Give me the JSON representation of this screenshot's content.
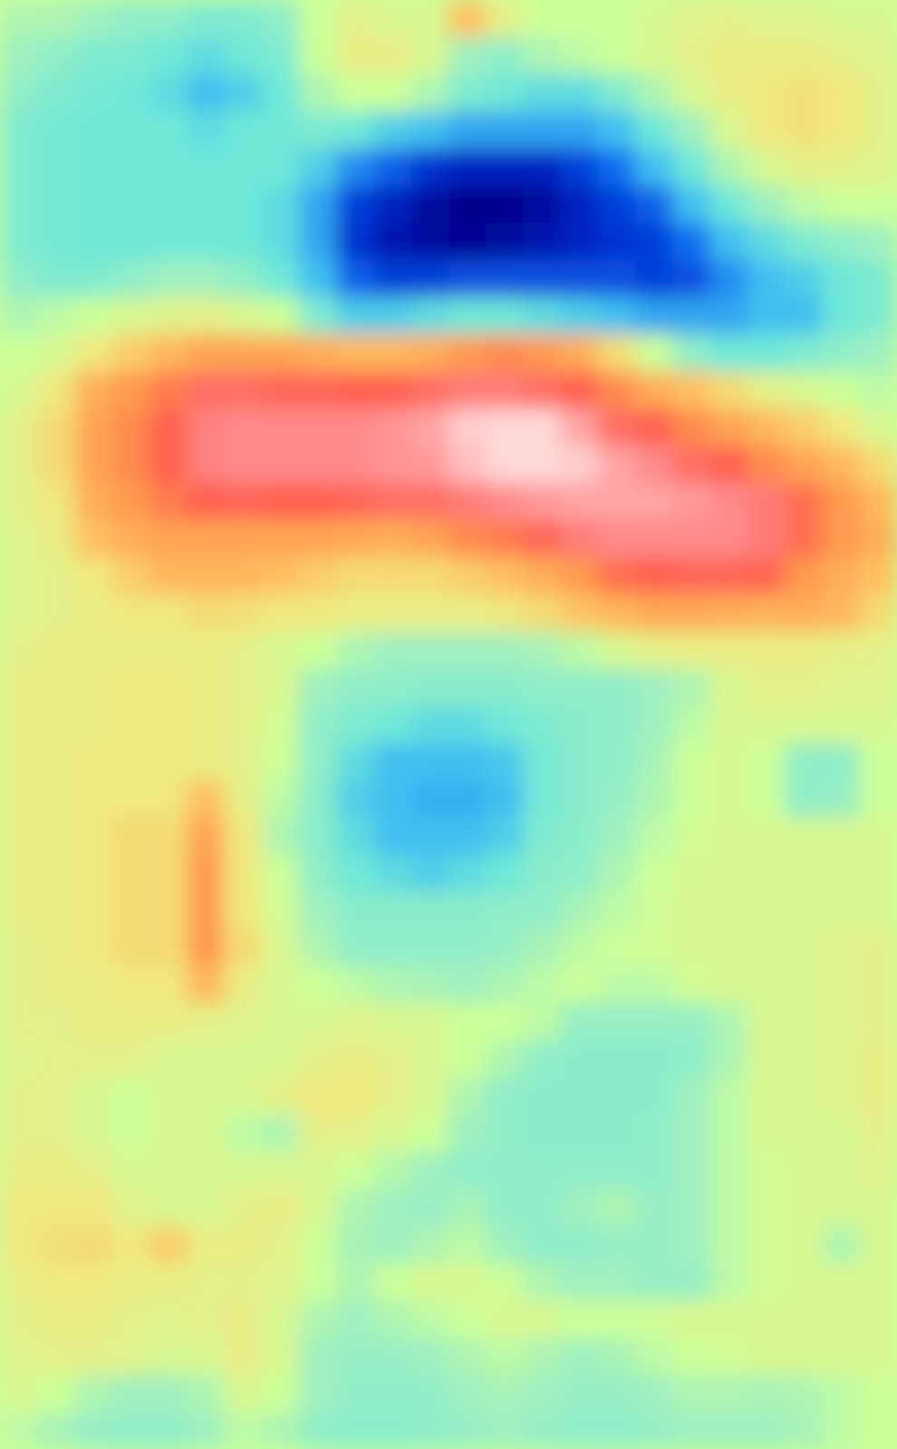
{
  "chart_data": {
    "type": "heatmap",
    "tick_labels": false,
    "zlim": [
      -1,
      1
    ],
    "cells": [
      [
        -0.1,
        -0.1,
        -0.15,
        -0.2,
        -0.2,
        -0.25,
        -0.25,
        -0.2,
        0.0,
        0.1,
        0.05,
        0.05,
        0.3,
        0.1,
        0,
        0,
        0,
        0.05,
        0.08,
        0.1,
        0.08,
        0.08,
        0.05,
        0.05
      ],
      [
        -0.15,
        -0.2,
        -0.25,
        -0.25,
        -0.3,
        -0.35,
        -0.3,
        -0.25,
        0.0,
        0.12,
        0.12,
        0.05,
        -0.15,
        -0.2,
        -0.1,
        -0.05,
        0,
        0.05,
        0.1,
        0.12,
        0.12,
        0.12,
        0.1,
        0.08
      ],
      [
        -0.2,
        -0.25,
        -0.28,
        -0.3,
        -0.35,
        -0.45,
        -0.4,
        -0.3,
        -0.1,
        0.0,
        0.0,
        -0.1,
        -0.25,
        -0.3,
        -0.35,
        -0.35,
        -0.25,
        -0.1,
        0.05,
        0.12,
        0.15,
        0.18,
        0.15,
        0.1
      ],
      [
        -0.25,
        -0.28,
        -0.3,
        -0.3,
        -0.3,
        -0.35,
        -0.3,
        -0.3,
        -0.25,
        -0.3,
        -0.4,
        -0.45,
        -0.5,
        -0.5,
        -0.5,
        -0.5,
        -0.45,
        -0.3,
        -0.15,
        0.05,
        0.15,
        0.18,
        0.15,
        0.1
      ],
      [
        -0.25,
        -0.28,
        -0.3,
        -0.3,
        -0.3,
        -0.3,
        -0.3,
        -0.3,
        -0.4,
        -0.55,
        -0.65,
        -0.8,
        -0.85,
        -0.85,
        -0.85,
        -0.75,
        -0.6,
        -0.45,
        -0.3,
        -0.1,
        0.05,
        0.1,
        0.1,
        0.08
      ],
      [
        -0.25,
        -0.28,
        -0.3,
        -0.3,
        -0.3,
        -0.3,
        -0.3,
        -0.35,
        -0.5,
        -0.75,
        -0.85,
        -0.95,
        -1.0,
        -1.0,
        -0.95,
        -0.85,
        -0.75,
        -0.65,
        -0.45,
        -0.3,
        -0.15,
        -0.05,
        0.0,
        0.0
      ],
      [
        -0.25,
        -0.28,
        -0.3,
        -0.3,
        -0.3,
        -0.3,
        -0.3,
        -0.35,
        -0.5,
        -0.8,
        -0.9,
        -0.95,
        -0.98,
        -0.95,
        -0.9,
        -0.85,
        -0.8,
        -0.75,
        -0.6,
        -0.45,
        -0.35,
        -0.25,
        -0.2,
        -0.15
      ],
      [
        -0.2,
        -0.25,
        -0.25,
        -0.2,
        -0.15,
        -0.15,
        -0.2,
        -0.3,
        -0.45,
        -0.65,
        -0.75,
        -0.75,
        -0.7,
        -0.7,
        -0.7,
        -0.7,
        -0.7,
        -0.75,
        -0.7,
        -0.55,
        -0.45,
        -0.4,
        -0.3,
        -0.25
      ],
      [
        -0.1,
        -0.05,
        0.0,
        0.05,
        0.08,
        0.1,
        0.05,
        0.0,
        -0.25,
        -0.4,
        -0.4,
        -0.35,
        -0.3,
        -0.3,
        -0.35,
        -0.4,
        -0.45,
        -0.5,
        -0.5,
        -0.5,
        -0.45,
        -0.45,
        -0.3,
        -0.25
      ],
      [
        0.0,
        0.05,
        0.15,
        0.25,
        0.35,
        0.45,
        0.45,
        0.45,
        0.4,
        0.35,
        0.35,
        0.4,
        0.5,
        0.55,
        0.5,
        0.4,
        0.2,
        0.0,
        -0.2,
        -0.3,
        -0.3,
        -0.25,
        -0.2,
        -0.15
      ],
      [
        0.05,
        0.15,
        0.4,
        0.5,
        0.6,
        0.75,
        0.75,
        0.72,
        0.72,
        0.7,
        0.7,
        0.75,
        0.8,
        0.8,
        0.75,
        0.7,
        0.55,
        0.4,
        0.3,
        0.2,
        0.1,
        0.05,
        0.0,
        -0.05
      ],
      [
        0.1,
        0.2,
        0.45,
        0.55,
        0.7,
        0.82,
        0.85,
        0.85,
        0.85,
        0.85,
        0.87,
        0.9,
        0.98,
        1.0,
        1.0,
        0.9,
        0.75,
        0.7,
        0.55,
        0.45,
        0.35,
        0.25,
        0.15,
        0.05
      ],
      [
        0.1,
        0.2,
        0.45,
        0.55,
        0.7,
        0.82,
        0.85,
        0.85,
        0.85,
        0.85,
        0.87,
        0.88,
        0.95,
        1.0,
        1.0,
        0.98,
        0.9,
        0.85,
        0.75,
        0.7,
        0.55,
        0.45,
        0.35,
        0.2
      ],
      [
        0.1,
        0.15,
        0.4,
        0.5,
        0.6,
        0.7,
        0.72,
        0.7,
        0.7,
        0.72,
        0.75,
        0.75,
        0.8,
        0.85,
        0.88,
        0.9,
        0.9,
        0.9,
        0.88,
        0.85,
        0.8,
        0.65,
        0.5,
        0.35
      ],
      [
        0.08,
        0.12,
        0.3,
        0.4,
        0.45,
        0.45,
        0.45,
        0.45,
        0.45,
        0.42,
        0.4,
        0.45,
        0.55,
        0.6,
        0.72,
        0.8,
        0.85,
        0.85,
        0.85,
        0.85,
        0.8,
        0.65,
        0.5,
        0.4
      ],
      [
        0.08,
        0.1,
        0.15,
        0.25,
        0.35,
        0.35,
        0.35,
        0.3,
        0.25,
        0.2,
        0.2,
        0.2,
        0.25,
        0.3,
        0.4,
        0.5,
        0.65,
        0.7,
        0.72,
        0.72,
        0.68,
        0.5,
        0.4,
        0.3
      ],
      [
        0.08,
        0.1,
        0.12,
        0.15,
        0.15,
        0.2,
        0.18,
        0.15,
        0.15,
        0.12,
        0.12,
        0.12,
        0.12,
        0.15,
        0.2,
        0.28,
        0.35,
        0.42,
        0.42,
        0.4,
        0.38,
        0.4,
        0.35,
        0.2
      ],
      [
        0.1,
        0.12,
        0.12,
        0.12,
        0.12,
        0.12,
        0.1,
        0.05,
        0.0,
        -0.1,
        -0.15,
        -0.15,
        -0.15,
        -0.15,
        -0.12,
        -0.05,
        0.05,
        0.1,
        0.12,
        0.12,
        0.12,
        0.12,
        0.1,
        0.1
      ],
      [
        0.12,
        0.12,
        0.12,
        0.15,
        0.15,
        0.12,
        0.1,
        0.05,
        -0.15,
        -0.2,
        -0.2,
        -0.22,
        -0.22,
        -0.22,
        -0.2,
        -0.2,
        -0.2,
        -0.15,
        -0.1,
        0.05,
        0.1,
        0.1,
        0.08,
        0.08
      ],
      [
        0.12,
        0.12,
        0.12,
        0.15,
        0.15,
        0.12,
        0.1,
        0.02,
        -0.2,
        -0.25,
        -0.3,
        -0.35,
        -0.35,
        -0.3,
        -0.25,
        -0.22,
        -0.2,
        -0.15,
        -0.05,
        0.05,
        0.05,
        0.05,
        0.05,
        0.05
      ],
      [
        0.12,
        0.12,
        0.15,
        0.15,
        0.15,
        0.12,
        0.1,
        0.0,
        -0.2,
        -0.35,
        -0.45,
        -0.45,
        -0.45,
        -0.42,
        -0.28,
        -0.22,
        -0.2,
        -0.12,
        0.0,
        0.05,
        0.0,
        -0.2,
        -0.2,
        0.0
      ],
      [
        0.12,
        0.12,
        0.15,
        0.15,
        0.15,
        0.3,
        0.1,
        -0.05,
        -0.22,
        -0.4,
        -0.45,
        -0.48,
        -0.48,
        -0.45,
        -0.28,
        -0.22,
        -0.18,
        -0.1,
        0.0,
        0.05,
        0.0,
        -0.2,
        -0.18,
        0.0
      ],
      [
        0.12,
        0.12,
        0.15,
        0.2,
        0.2,
        0.45,
        0.15,
        -0.1,
        -0.22,
        -0.35,
        -0.45,
        -0.45,
        -0.45,
        -0.4,
        -0.25,
        -0.22,
        -0.15,
        -0.05,
        0.02,
        0.05,
        0.05,
        0.05,
        0.05,
        0.05
      ],
      [
        0.12,
        0.12,
        0.15,
        0.2,
        0.2,
        0.5,
        0.15,
        0.0,
        -0.2,
        -0.3,
        -0.35,
        -0.4,
        -0.35,
        -0.3,
        -0.22,
        -0.2,
        -0.1,
        0.0,
        0.05,
        0.05,
        0.05,
        0.05,
        0.05,
        0.05
      ],
      [
        0.12,
        0.12,
        0.15,
        0.2,
        0.2,
        0.5,
        0.15,
        0.02,
        -0.15,
        -0.22,
        -0.22,
        -0.22,
        -0.22,
        -0.2,
        -0.2,
        -0.12,
        -0.05,
        0.02,
        0.05,
        0.05,
        0.05,
        0.05,
        0.05,
        0.05
      ],
      [
        0.1,
        0.12,
        0.15,
        0.2,
        0.2,
        0.5,
        0.2,
        0.05,
        -0.1,
        -0.2,
        -0.2,
        -0.2,
        -0.2,
        -0.18,
        -0.12,
        -0.05,
        0.0,
        0.02,
        0.05,
        0.05,
        0.05,
        0.05,
        0.08,
        0.1
      ],
      [
        0.1,
        0.12,
        0.12,
        0.15,
        0.15,
        0.35,
        0.12,
        0.05,
        0.0,
        -0.05,
        -0.1,
        -0.12,
        -0.15,
        -0.1,
        -0.05,
        0.0,
        -0.05,
        -0.05,
        0.02,
        0.05,
        0.05,
        0.05,
        0.08,
        0.1
      ],
      [
        0.1,
        0.1,
        0.12,
        0.12,
        0.12,
        0.1,
        0.08,
        0.05,
        0.05,
        0.08,
        0.05,
        0.05,
        0.0,
        0.0,
        -0.05,
        -0.18,
        -0.18,
        -0.18,
        -0.18,
        -0.1,
        0.05,
        0.05,
        0.08,
        0.1
      ],
      [
        0.08,
        0.1,
        0.1,
        0.1,
        0.05,
        0.05,
        0.05,
        0.05,
        0.1,
        0.12,
        0.1,
        0.05,
        0.0,
        -0.1,
        -0.2,
        -0.22,
        -0.22,
        -0.22,
        -0.2,
        -0.1,
        0.05,
        0.05,
        0.08,
        0.12
      ],
      [
        0.1,
        0.1,
        0.05,
        0.0,
        0.05,
        0.05,
        0.05,
        0.1,
        0.15,
        0.15,
        0.1,
        0.05,
        -0.1,
        -0.2,
        -0.22,
        -0.22,
        -0.22,
        -0.22,
        -0.15,
        -0.05,
        0.05,
        0.05,
        0.08,
        0.12
      ],
      [
        0.1,
        0.1,
        0.05,
        0.0,
        0.05,
        0.05,
        -0.05,
        -0.1,
        0.1,
        0.1,
        0.05,
        0.0,
        -0.15,
        -0.2,
        -0.22,
        -0.22,
        -0.22,
        -0.2,
        -0.15,
        -0.05,
        0.05,
        0.05,
        0.05,
        0.1
      ],
      [
        0.12,
        0.12,
        0.1,
        0.05,
        0.05,
        0.05,
        0.05,
        0.05,
        0.05,
        0.0,
        -0.08,
        -0.15,
        -0.2,
        -0.2,
        -0.2,
        -0.2,
        -0.2,
        -0.2,
        -0.15,
        -0.05,
        0.02,
        0.05,
        0.05,
        0.08
      ],
      [
        0.15,
        0.15,
        0.15,
        0.08,
        0.05,
        0.05,
        0.1,
        0.12,
        0.05,
        -0.1,
        -0.15,
        -0.18,
        -0.12,
        -0.2,
        -0.2,
        -0.15,
        -0.1,
        -0.18,
        -0.15,
        -0.05,
        0.02,
        0.05,
        0.05,
        0.05
      ],
      [
        0.15,
        0.18,
        0.2,
        0.15,
        0.25,
        0.12,
        0.12,
        0.1,
        0.0,
        -0.12,
        -0.15,
        -0.1,
        -0.05,
        -0.15,
        -0.2,
        -0.2,
        -0.18,
        -0.18,
        -0.15,
        -0.05,
        0.02,
        0.05,
        -0.1,
        0.05
      ],
      [
        0.12,
        0.15,
        0.15,
        0.12,
        0.12,
        0.1,
        0.1,
        0.08,
        0.0,
        -0.1,
        0.0,
        0.05,
        0.05,
        0.0,
        -0.1,
        -0.15,
        -0.15,
        -0.18,
        -0.18,
        -0.05,
        0.02,
        0.05,
        0.05,
        0.05
      ],
      [
        0.1,
        0.12,
        0.12,
        0.1,
        0.08,
        0.1,
        0.12,
        0.05,
        -0.1,
        -0.15,
        -0.1,
        -0.05,
        0.0,
        0.05,
        0.05,
        0.0,
        0.0,
        0.02,
        0.05,
        0.05,
        0.05,
        0.05,
        0.05,
        0.05
      ],
      [
        0.08,
        0.1,
        0.1,
        0.08,
        0.05,
        0.05,
        0.12,
        0.05,
        -0.15,
        -0.18,
        -0.18,
        -0.15,
        -0.1,
        -0.05,
        -0.1,
        -0.15,
        -0.12,
        -0.05,
        0.0,
        0.02,
        0.05,
        0.05,
        0.05,
        0.05
      ],
      [
        0.05,
        0.0,
        -0.1,
        -0.15,
        -0.15,
        -0.1,
        0.05,
        0.0,
        -0.15,
        -0.2,
        -0.2,
        -0.2,
        -0.15,
        -0.12,
        -0.15,
        -0.18,
        -0.18,
        -0.15,
        -0.1,
        -0.1,
        -0.12,
        -0.1,
        -0.05,
        0.0
      ],
      [
        -0.05,
        -0.12,
        -0.18,
        -0.2,
        -0.2,
        -0.15,
        -0.05,
        -0.1,
        -0.2,
        -0.22,
        -0.22,
        -0.2,
        -0.18,
        -0.15,
        -0.18,
        -0.2,
        -0.2,
        -0.18,
        -0.15,
        -0.15,
        -0.15,
        -0.12,
        -0.05,
        0.0
      ]
    ]
  }
}
